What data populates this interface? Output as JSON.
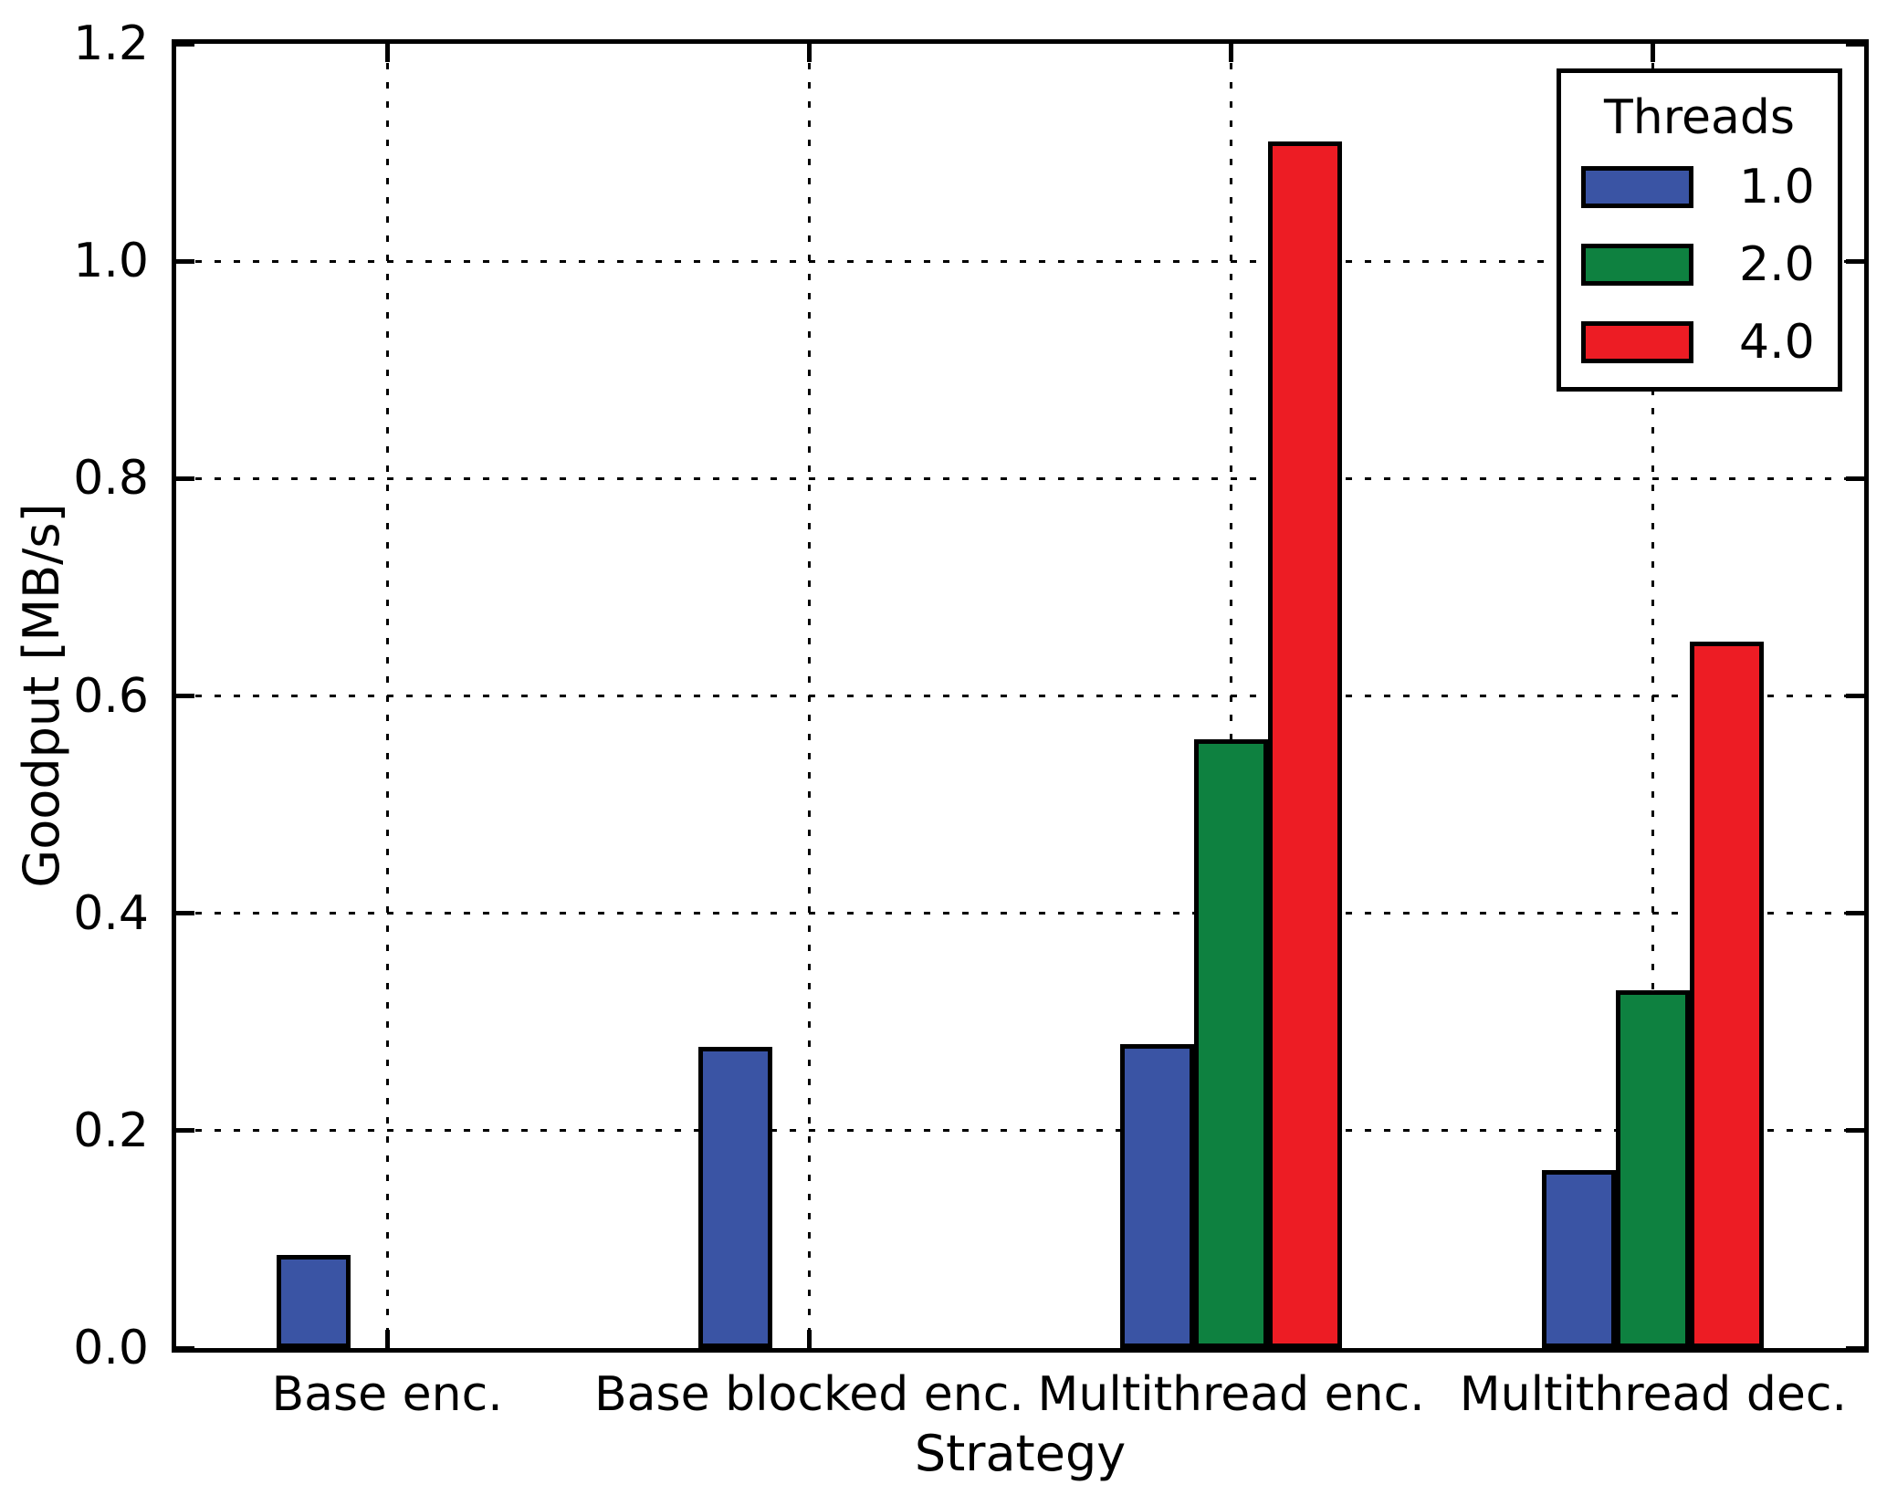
{
  "chart_data": {
    "type": "bar",
    "title": "",
    "xlabel": "Strategy",
    "ylabel": "Goodput [MB/s]",
    "categories": [
      "Base enc.",
      "Base blocked enc.",
      "Multithread enc.",
      "Multithread dec."
    ],
    "series": [
      {
        "name": "1.0",
        "color": "#3A54A4",
        "values": [
          0.086,
          0.277,
          0.28,
          0.164
        ]
      },
      {
        "name": "2.0",
        "color": "#0E8140",
        "values": [
          0,
          0,
          0.56,
          0.329
        ]
      },
      {
        "name": "4.0",
        "color": "#ED1C24",
        "values": [
          0,
          0,
          1.11,
          0.65
        ]
      }
    ],
    "ylim": [
      0,
      1.2
    ],
    "yticks": [
      0.0,
      0.2,
      0.4,
      0.6,
      0.8,
      1.0,
      1.2
    ],
    "ytick_labels": [
      "0.0",
      "0.2",
      "0.4",
      "0.6",
      "0.8",
      "1.0",
      "1.2"
    ],
    "grid": true,
    "gridstyle": "dotted",
    "legend": {
      "title": "Threads",
      "position": "upper right"
    },
    "frame_color": "#000000",
    "background": "#ffffff"
  }
}
